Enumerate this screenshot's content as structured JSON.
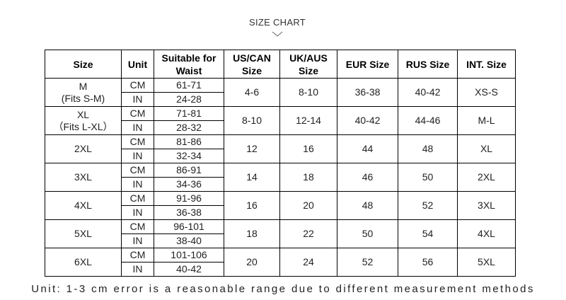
{
  "title": "SIZE CHART",
  "table": {
    "header": [
      "Size",
      "Unit",
      "Suitable for Waist",
      "US/CAN Size",
      "UK/AUS Size",
      "EUR Size",
      "RUS Size",
      "INT. Size"
    ],
    "rows": [
      {
        "size": "M",
        "fits": "(Fits S-M)",
        "units": [
          "CM",
          "IN"
        ],
        "waist": [
          "61-71",
          "24-28"
        ],
        "us": "4-6",
        "uk": "8-10",
        "eur": "36-38",
        "rus": "40-42",
        "int": "XS-S"
      },
      {
        "size": "XL",
        "fits": "（Fits L-XL）",
        "units": [
          "CM",
          "IN"
        ],
        "waist": [
          "71-81",
          "28-32"
        ],
        "us": "8-10",
        "uk": "12-14",
        "eur": "40-42",
        "rus": "44-46",
        "int": "M-L"
      },
      {
        "size": "2XL",
        "units": [
          "CM",
          "IN"
        ],
        "waist": [
          "81-86",
          "32-34"
        ],
        "us": "12",
        "uk": "16",
        "eur": "44",
        "rus": "48",
        "int": "XL"
      },
      {
        "size": "3XL",
        "units": [
          "CM",
          "IN"
        ],
        "waist": [
          "86-91",
          "34-36"
        ],
        "us": "14",
        "uk": "18",
        "eur": "46",
        "rus": "50",
        "int": "2XL"
      },
      {
        "size": "4XL",
        "units": [
          "CM",
          "IN"
        ],
        "waist": [
          "91-96",
          "36-38"
        ],
        "us": "16",
        "uk": "20",
        "eur": "48",
        "rus": "52",
        "int": "3XL"
      },
      {
        "size": "5XL",
        "units": [
          "CM",
          "IN"
        ],
        "waist": [
          "96-101",
          "38-40"
        ],
        "us": "18",
        "uk": "22",
        "eur": "50",
        "rus": "54",
        "int": "4XL"
      },
      {
        "size": "6XL",
        "units": [
          "CM",
          "IN"
        ],
        "waist": [
          "101-106",
          "40-42"
        ],
        "us": "20",
        "uk": "24",
        "eur": "52",
        "rus": "56",
        "int": "5XL"
      }
    ]
  },
  "note": "Unit: 1-3 cm error is a reasonable range due to different measurement methods"
}
